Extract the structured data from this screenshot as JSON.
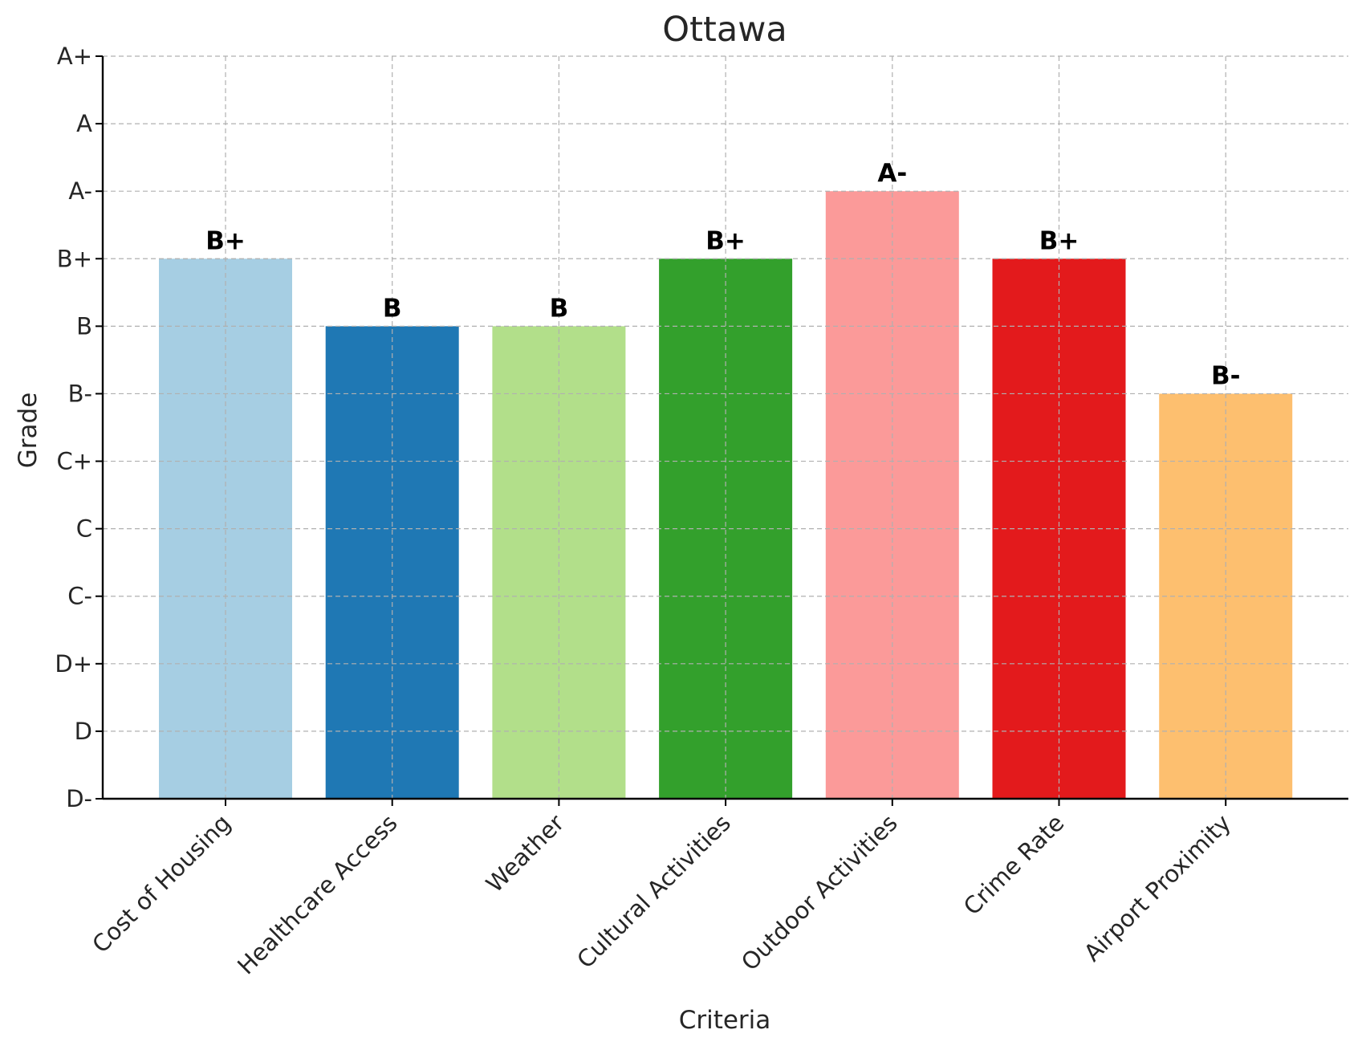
{
  "chart_data": {
    "type": "bar",
    "title": "Ottawa",
    "xlabel": "Criteria",
    "ylabel": "Grade",
    "grade_scale": [
      "D-",
      "D",
      "D+",
      "C-",
      "C",
      "C+",
      "B-",
      "B",
      "B+",
      "A-",
      "A",
      "A+"
    ],
    "categories": [
      "Cost of Housing",
      "Healthcare Access",
      "Weather",
      "Cultural Activities",
      "Outdoor Activities",
      "Crime Rate",
      "Airport Proximity"
    ],
    "values": [
      8,
      7,
      7,
      8,
      9,
      8,
      6
    ],
    "labels": [
      "B+",
      "B",
      "B",
      "B+",
      "A-",
      "B+",
      "B-"
    ],
    "colors": [
      "#a6cee3",
      "#1f78b4",
      "#b2df8a",
      "#33a02c",
      "#fb9a99",
      "#e31a1c",
      "#fdbf6f"
    ],
    "ylim": [
      0,
      11
    ],
    "grid": true
  }
}
